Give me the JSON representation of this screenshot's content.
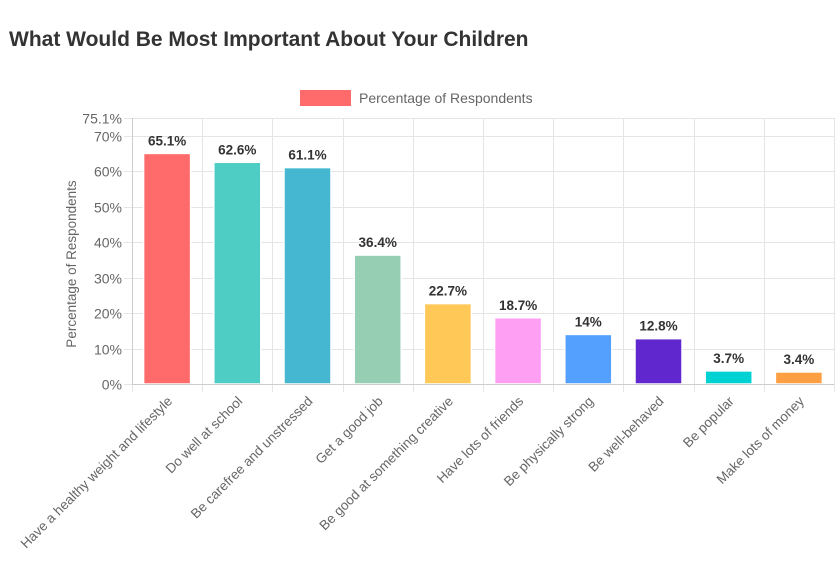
{
  "chart_data": {
    "type": "bar",
    "title": "What Would Be Most Important About Your Children",
    "xlabel": "",
    "ylabel": "Percentage of Respondents",
    "ylim": [
      0,
      75.1
    ],
    "y_ticks": [
      0,
      10,
      20,
      30,
      40,
      50,
      60,
      70,
      75.1
    ],
    "y_tick_labels": [
      "0%",
      "10%",
      "20%",
      "30%",
      "40%",
      "50%",
      "60%",
      "70%",
      "75.1%"
    ],
    "grid": true,
    "legend": {
      "position": "top-center",
      "entries": [
        {
          "label": "Percentage of Respondents",
          "color": "#ff6b6b"
        }
      ]
    },
    "categories": [
      "Have a healthy weight and lifestyle",
      "Do well at school",
      "Be carefree and unstressed",
      "Get a good job",
      "Be good at something creative",
      "Have lots of friends",
      "Be physically strong",
      "Be well-behaved",
      "Be popular",
      "Make lots of money"
    ],
    "series": [
      {
        "name": "Percentage of Respondents",
        "values": [
          65.1,
          62.6,
          61.1,
          36.4,
          22.7,
          18.7,
          14,
          12.8,
          3.7,
          3.4
        ],
        "value_labels": [
          "65.1%",
          "62.6%",
          "61.1%",
          "36.4%",
          "22.7%",
          "18.7%",
          "14%",
          "12.8%",
          "3.7%",
          "3.4%"
        ],
        "colors": [
          "#ff6b6b",
          "#4ecdc4",
          "#45b7d1",
          "#96ceb4",
          "#ffc857",
          "#ff9ff3",
          "#54a0ff",
          "#5f27cd",
          "#00d2d3",
          "#ff9f43"
        ]
      }
    ]
  }
}
